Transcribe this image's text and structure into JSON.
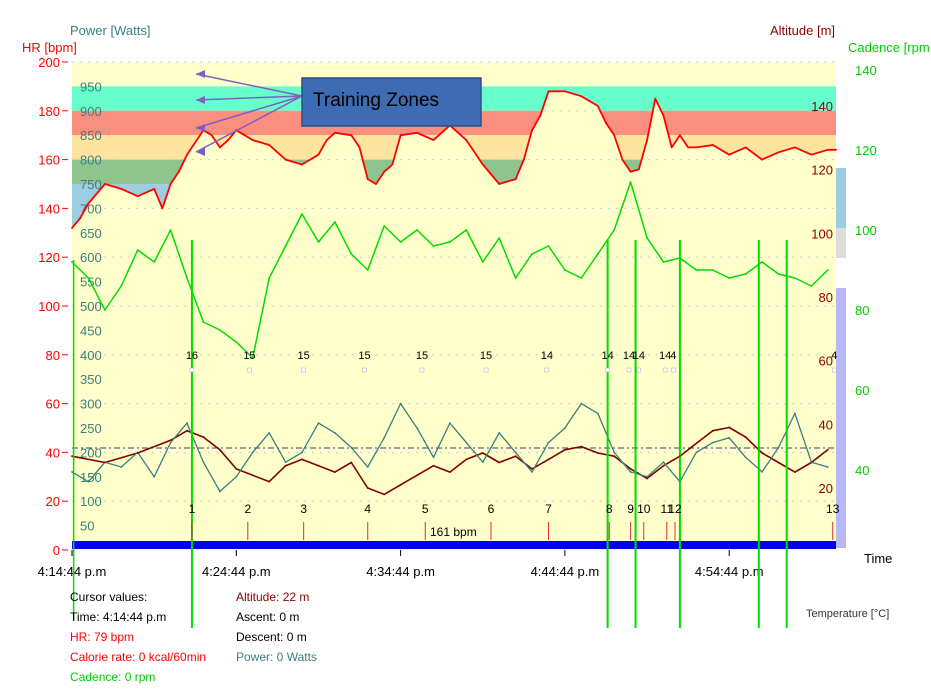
{
  "chart_data": {
    "type": "line",
    "axes": {
      "hr": {
        "label": "HR [bpm]",
        "range": [
          0,
          200
        ],
        "ticks": [
          "0",
          "20",
          "40",
          "60",
          "80",
          "100",
          "120",
          "140",
          "160",
          "180",
          "200"
        ],
        "color": "#ff0000"
      },
      "power": {
        "label": "Power [Watts]",
        "range": [
          0,
          1000
        ],
        "ticks": [
          "50",
          "100",
          "150",
          "200",
          "250",
          "300",
          "350",
          "400",
          "450",
          "500",
          "550",
          "600",
          "650",
          "700",
          "750",
          "800",
          "850",
          "900",
          "950"
        ],
        "color": "#3a7f7f"
      },
      "altitude": {
        "label": "Altitude [m]",
        "ticks": [
          "20",
          "40",
          "60",
          "80",
          "100",
          "120",
          "140"
        ],
        "color": "#8b0000"
      },
      "cadence": {
        "label": "Cadence [rpm",
        "range": [
          20,
          145
        ],
        "ticks": [
          "40",
          "60",
          "80",
          "100",
          "120",
          "140"
        ],
        "color": "#00cc00"
      },
      "time": {
        "label": "Time",
        "ticks": [
          "4:14:44 p.m",
          "4:24:44 p.m",
          "4:34:44 p.m",
          "4:44:44 p.m",
          "4:54:44 p.m"
        ],
        "range_minutes": [
          0,
          46.5
        ]
      }
    },
    "zones": [
      {
        "from": 900,
        "to": 950,
        "color": "#66ffcc"
      },
      {
        "from": 850,
        "to": 900,
        "color": "#fa8f7f"
      },
      {
        "from": 800,
        "to": 850,
        "color": "#ffe4a0"
      },
      {
        "from": 750,
        "to": 800,
        "color": "#8fc48f"
      },
      {
        "from": 650,
        "to": 750,
        "color": "#9dcde0"
      }
    ],
    "annotation": "Training Zones",
    "laps": [
      "1",
      "2",
      "3",
      "4",
      "5",
      "6",
      "7",
      "8",
      "9",
      "10",
      "11",
      "12",
      "13"
    ],
    "lap_minutes": [
      7.3,
      10.7,
      14.1,
      18.0,
      21.5,
      25.5,
      29.0,
      32.7,
      34.0,
      34.8,
      36.2,
      36.7,
      46.3
    ],
    "temperature_marks": [
      {
        "min": 7.3,
        "label": "16"
      },
      {
        "min": 10.8,
        "label": "15"
      },
      {
        "min": 14.1,
        "label": "15"
      },
      {
        "min": 17.8,
        "label": "15"
      },
      {
        "min": 21.3,
        "label": "15"
      },
      {
        "min": 25.2,
        "label": "15"
      },
      {
        "min": 28.9,
        "label": "14"
      },
      {
        "min": 32.6,
        "label": "14"
      },
      {
        "min": 33.9,
        "label": "14"
      },
      {
        "min": 34.5,
        "label": "14"
      },
      {
        "min": 36.1,
        "label": "14"
      },
      {
        "min": 36.6,
        "label": "4"
      },
      {
        "min": 46.4,
        "label": "4"
      }
    ],
    "avg_hr_label": "161 bpm",
    "series": [
      {
        "name": "HR",
        "color": "#ff0000",
        "t": [
          0,
          0.5,
          1,
          2,
          3,
          4,
          5,
          5.5,
          6,
          6.5,
          7,
          7.5,
          8,
          8.5,
          9,
          9.5,
          10,
          10.5,
          11,
          12,
          13,
          14,
          15,
          15.5,
          16,
          17,
          17.5,
          18,
          18.5,
          19,
          19.5,
          20,
          21,
          22,
          23,
          24,
          25,
          26,
          27,
          27.5,
          28,
          28.5,
          29,
          30,
          31,
          32,
          32.5,
          33,
          33.5,
          34,
          34.5,
          35,
          35.5,
          36,
          36.5,
          37,
          37.5,
          38,
          39,
          40,
          41,
          42,
          43,
          44,
          45,
          46,
          46.5
        ],
        "v": [
          132,
          136,
          142,
          150,
          148,
          145,
          148,
          140,
          150,
          155,
          162,
          167,
          172,
          170,
          165,
          168,
          172,
          170,
          168,
          166,
          160,
          158,
          162,
          168,
          171,
          170,
          165,
          152,
          150,
          155,
          158,
          170,
          171,
          168,
          174,
          168,
          158,
          150,
          152,
          160,
          172,
          178,
          188,
          188,
          186,
          182,
          175,
          170,
          160,
          155,
          156,
          168,
          185,
          178,
          165,
          170,
          165,
          165,
          166,
          162,
          165,
          160,
          163,
          165,
          162,
          164,
          164
        ]
      },
      {
        "name": "Cadence",
        "color": "#00dd00",
        "t": [
          0,
          1,
          2,
          3,
          4,
          5,
          6,
          7,
          8,
          9,
          10,
          11,
          12,
          13,
          14,
          15,
          16,
          17,
          18,
          19,
          20,
          21,
          22,
          23,
          24,
          25,
          26,
          27,
          28,
          29,
          30,
          31,
          32,
          33,
          34,
          35,
          36,
          37,
          38,
          39,
          40,
          41,
          42,
          43,
          44,
          45,
          46
        ],
        "v": [
          92,
          88,
          80,
          86,
          95,
          92,
          100,
          88,
          77,
          75,
          72,
          68,
          88,
          96,
          104,
          97,
          102,
          94,
          90,
          101,
          97,
          100,
          96,
          97,
          100,
          92,
          98,
          88,
          94,
          96,
          90,
          88,
          94,
          100,
          112,
          98,
          92,
          93,
          90,
          90,
          88,
          89,
          92,
          89,
          88,
          86,
          90
        ]
      },
      {
        "name": "Power",
        "color": "#3a7f7f",
        "t": [
          0,
          1,
          2,
          3,
          4,
          5,
          6,
          7,
          8,
          9,
          10,
          11,
          12,
          13,
          14,
          15,
          16,
          17,
          18,
          19,
          20,
          21,
          22,
          23,
          24,
          25,
          26,
          27,
          28,
          29,
          30,
          31,
          32,
          33,
          34,
          35,
          36,
          37,
          38,
          39,
          40,
          41,
          42,
          43,
          44,
          45,
          46
        ],
        "v": [
          160,
          140,
          180,
          170,
          200,
          150,
          220,
          260,
          180,
          120,
          150,
          200,
          240,
          180,
          200,
          260,
          240,
          210,
          170,
          230,
          300,
          250,
          190,
          260,
          220,
          180,
          240,
          200,
          160,
          220,
          250,
          300,
          280,
          200,
          160,
          150,
          180,
          140,
          200,
          220,
          230,
          190,
          160,
          210,
          280,
          180,
          170
        ]
      },
      {
        "name": "Altitude",
        "color": "#800000",
        "t": [
          0,
          2,
          4,
          6,
          7,
          8,
          9,
          10,
          11,
          12,
          13,
          14,
          15,
          16,
          17,
          18,
          19,
          20,
          21,
          22,
          23,
          24,
          25,
          26,
          27,
          28,
          29,
          30,
          31,
          32,
          33,
          34,
          35,
          36,
          37,
          38,
          39,
          40,
          41,
          42,
          43,
          44,
          45,
          46
        ],
        "v": [
          30,
          28,
          31,
          35,
          38,
          36,
          32,
          26,
          24,
          22,
          27,
          29,
          27,
          25,
          28,
          20,
          18,
          21,
          24,
          27,
          25,
          29,
          31,
          28,
          30,
          26,
          29,
          32,
          33,
          31,
          30,
          26,
          23,
          27,
          30,
          34,
          38,
          39,
          36,
          31,
          28,
          25,
          28,
          32
        ]
      }
    ]
  },
  "cursor": {
    "title": "Cursor values:",
    "time": "Time: 4:14:44 p.m",
    "hr": "HR: 79 bpm",
    "calorie": "Calorie rate: 0 kcal/60min",
    "cadence": "Cadence: 0 rpm",
    "altitude": "Altitude: 22 m",
    "ascent": "Ascent: 0 m",
    "descent": "Descent: 0 m",
    "power": "Power: 0 Watts"
  },
  "temperature_label": "Temperature [°C]"
}
